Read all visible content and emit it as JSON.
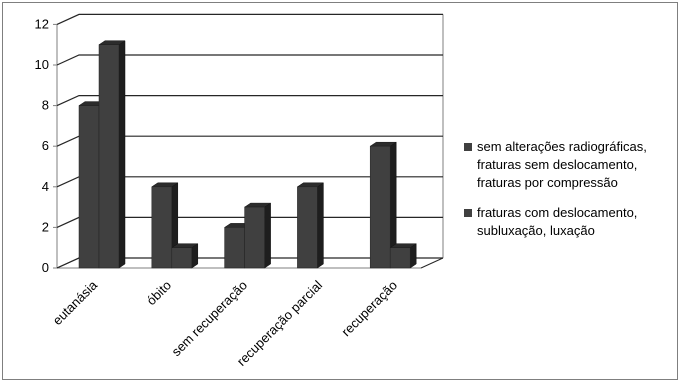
{
  "chart_data": {
    "type": "bar",
    "categories": [
      "eutanásia",
      "óbito",
      "sem recuperação",
      "recuperação parcial",
      "recuperação"
    ],
    "series": [
      {
        "name": [
          "sem alterações radiográficas,",
          "fraturas sem deslocamento,",
          "fraturas por compressão"
        ],
        "values": [
          8,
          4,
          2,
          4,
          6
        ]
      },
      {
        "name": [
          "fraturas com deslocamento,",
          "subluxação, luxação"
        ],
        "values": [
          11,
          1,
          3,
          0,
          1
        ]
      }
    ],
    "y_ticks": [
      "0",
      "2",
      "4",
      "6",
      "8",
      "10",
      "12"
    ],
    "ylim": [
      0,
      12
    ],
    "grid": true,
    "legend_position": "right",
    "colors": {
      "bar_front": "#404040",
      "bar_side": "#1e1e1e",
      "bar_top": "#2c2c2c",
      "grid": "#262626",
      "axis": "#7f7f7f",
      "wall": "#ffffff"
    },
    "style": "3d-column"
  }
}
